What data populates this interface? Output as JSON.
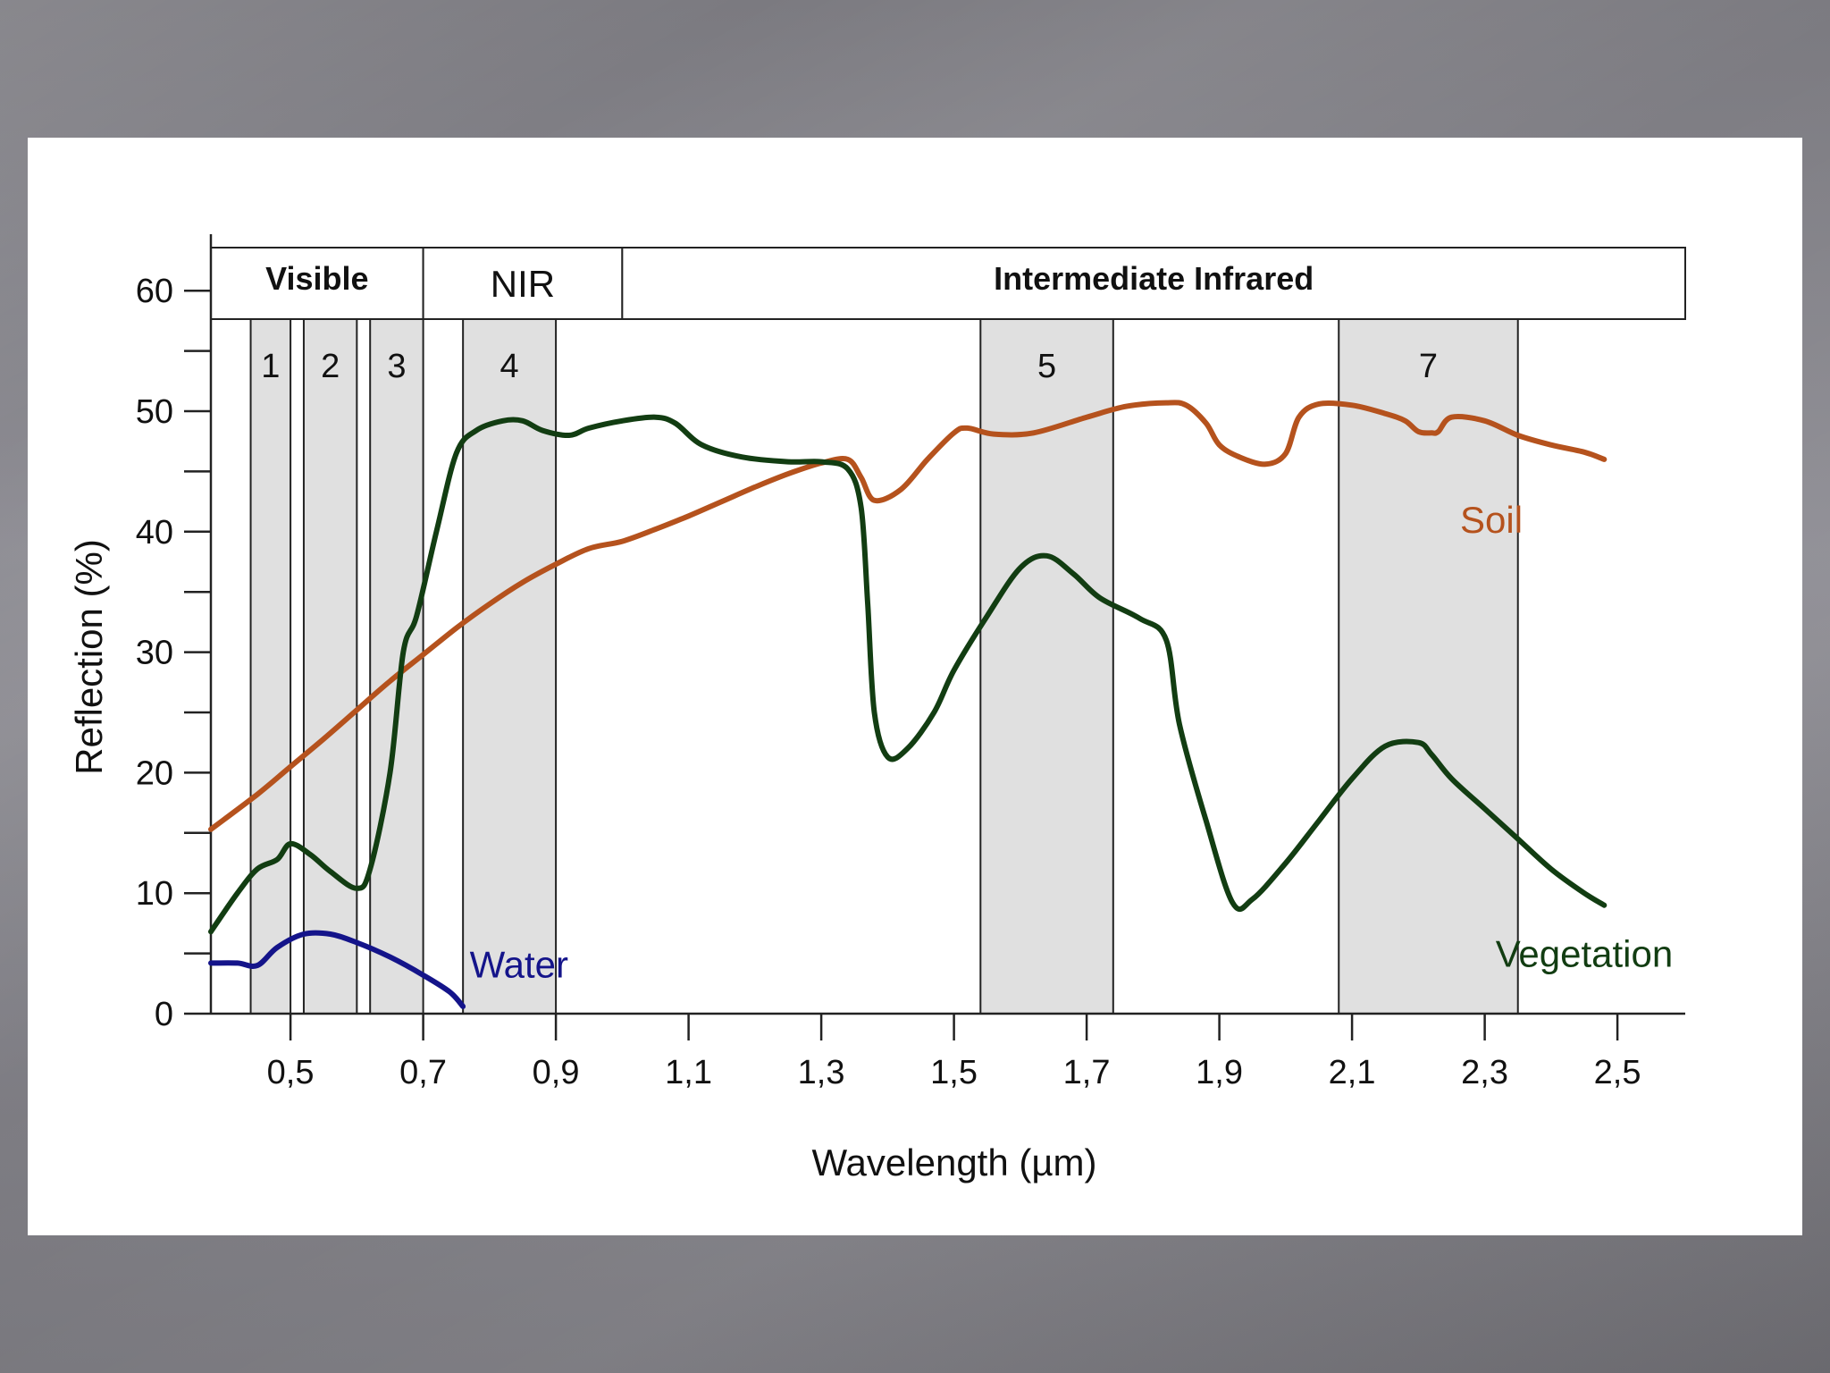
{
  "chart_data": {
    "type": "line",
    "xlabel": "Wavelength (µm)",
    "ylabel": "Reflection (%)",
    "xlim": [
      0.38,
      2.5
    ],
    "ylim": [
      0,
      60
    ],
    "x_ticks": [
      {
        "value": 0.5,
        "label": "0,5"
      },
      {
        "value": 0.7,
        "label": "0,7"
      },
      {
        "value": 0.9,
        "label": "0,9"
      },
      {
        "value": 1.1,
        "label": "1,1"
      },
      {
        "value": 1.3,
        "label": "1,3"
      },
      {
        "value": 1.5,
        "label": "1,5"
      },
      {
        "value": 1.7,
        "label": "1,7"
      },
      {
        "value": 1.9,
        "label": "1,9"
      },
      {
        "value": 2.1,
        "label": "2,1"
      },
      {
        "value": 2.3,
        "label": "2,3"
      },
      {
        "value": 2.5,
        "label": "2,5"
      }
    ],
    "y_ticks": [
      {
        "value": 0,
        "label": "0"
      },
      {
        "value": 10,
        "label": "10"
      },
      {
        "value": 20,
        "label": "20"
      },
      {
        "value": 30,
        "label": "30"
      },
      {
        "value": 40,
        "label": "40"
      },
      {
        "value": 50,
        "label": "50"
      },
      {
        "value": 60,
        "label": "60"
      }
    ],
    "regions": [
      {
        "label": "Visible",
        "from": 0.38,
        "to": 0.7,
        "bold": true
      },
      {
        "label": "NIR",
        "from": 0.7,
        "to": 1.0,
        "bold": false
      },
      {
        "label": "Intermediate Infrared",
        "from": 1.0,
        "to": 2.5,
        "bold": true
      }
    ],
    "bands": [
      {
        "label": "1",
        "from": 0.44,
        "to": 0.5
      },
      {
        "label": "2",
        "from": 0.52,
        "to": 0.6
      },
      {
        "label": "3",
        "from": 0.62,
        "to": 0.7
      },
      {
        "label": "4",
        "from": 0.76,
        "to": 0.9
      },
      {
        "label": "5",
        "from": 1.54,
        "to": 1.74
      },
      {
        "label": "7",
        "from": 2.08,
        "to": 2.35
      }
    ],
    "series": [
      {
        "name": "Soil",
        "color": "#b5521d",
        "points": [
          [
            0.38,
            15.3
          ],
          [
            0.45,
            18.2
          ],
          [
            0.5,
            20.5
          ],
          [
            0.55,
            22.8
          ],
          [
            0.6,
            25.2
          ],
          [
            0.65,
            27.6
          ],
          [
            0.7,
            29.8
          ],
          [
            0.75,
            32.0
          ],
          [
            0.8,
            34.0
          ],
          [
            0.85,
            35.8
          ],
          [
            0.9,
            37.3
          ],
          [
            0.95,
            38.6
          ],
          [
            1.0,
            39.2
          ],
          [
            1.05,
            40.2
          ],
          [
            1.1,
            41.3
          ],
          [
            1.15,
            42.5
          ],
          [
            1.2,
            43.7
          ],
          [
            1.25,
            44.8
          ],
          [
            1.3,
            45.7
          ],
          [
            1.34,
            46.0
          ],
          [
            1.36,
            44.5
          ],
          [
            1.38,
            42.6
          ],
          [
            1.42,
            43.5
          ],
          [
            1.46,
            46.0
          ],
          [
            1.5,
            48.2
          ],
          [
            1.52,
            48.6
          ],
          [
            1.56,
            48.1
          ],
          [
            1.62,
            48.2
          ],
          [
            1.7,
            49.5
          ],
          [
            1.76,
            50.4
          ],
          [
            1.82,
            50.7
          ],
          [
            1.85,
            50.5
          ],
          [
            1.88,
            49.0
          ],
          [
            1.9,
            47.2
          ],
          [
            1.93,
            46.2
          ],
          [
            1.97,
            45.6
          ],
          [
            2.0,
            46.5
          ],
          [
            2.02,
            49.5
          ],
          [
            2.05,
            50.6
          ],
          [
            2.1,
            50.5
          ],
          [
            2.15,
            49.8
          ],
          [
            2.18,
            49.2
          ],
          [
            2.2,
            48.3
          ],
          [
            2.22,
            48.2
          ],
          [
            2.23,
            48.3
          ],
          [
            2.25,
            49.5
          ],
          [
            2.3,
            49.2
          ],
          [
            2.35,
            48.0
          ],
          [
            2.4,
            47.2
          ],
          [
            2.45,
            46.6
          ],
          [
            2.48,
            46.0
          ]
        ]
      },
      {
        "name": "Vegetation",
        "color": "#123d12",
        "points": [
          [
            0.38,
            6.8
          ],
          [
            0.42,
            10.0
          ],
          [
            0.45,
            12.0
          ],
          [
            0.48,
            12.8
          ],
          [
            0.5,
            14.1
          ],
          [
            0.53,
            13.2
          ],
          [
            0.56,
            11.8
          ],
          [
            0.6,
            10.4
          ],
          [
            0.62,
            12.0
          ],
          [
            0.65,
            20.0
          ],
          [
            0.67,
            30.0
          ],
          [
            0.69,
            33.0
          ],
          [
            0.72,
            40.0
          ],
          [
            0.75,
            46.5
          ],
          [
            0.78,
            48.4
          ],
          [
            0.82,
            49.2
          ],
          [
            0.85,
            49.2
          ],
          [
            0.88,
            48.4
          ],
          [
            0.92,
            48.0
          ],
          [
            0.95,
            48.6
          ],
          [
            1.0,
            49.2
          ],
          [
            1.05,
            49.5
          ],
          [
            1.08,
            49.0
          ],
          [
            1.12,
            47.2
          ],
          [
            1.18,
            46.2
          ],
          [
            1.25,
            45.8
          ],
          [
            1.3,
            45.8
          ],
          [
            1.34,
            45.2
          ],
          [
            1.36,
            42.0
          ],
          [
            1.37,
            34.0
          ],
          [
            1.38,
            25.0
          ],
          [
            1.4,
            21.3
          ],
          [
            1.43,
            22.0
          ],
          [
            1.47,
            25.0
          ],
          [
            1.5,
            28.5
          ],
          [
            1.55,
            33.0
          ],
          [
            1.6,
            37.0
          ],
          [
            1.64,
            38.0
          ],
          [
            1.68,
            36.5
          ],
          [
            1.72,
            34.5
          ],
          [
            1.78,
            32.8
          ],
          [
            1.82,
            31.0
          ],
          [
            1.84,
            24.0
          ],
          [
            1.88,
            16.0
          ],
          [
            1.92,
            9.2
          ],
          [
            1.95,
            9.5
          ],
          [
            2.0,
            12.5
          ],
          [
            2.05,
            16.0
          ],
          [
            2.1,
            19.5
          ],
          [
            2.15,
            22.2
          ],
          [
            2.2,
            22.5
          ],
          [
            2.22,
            21.5
          ],
          [
            2.25,
            19.5
          ],
          [
            2.3,
            17.0
          ],
          [
            2.35,
            14.5
          ],
          [
            2.4,
            12.0
          ],
          [
            2.45,
            10.0
          ],
          [
            2.48,
            9.0
          ]
        ]
      },
      {
        "name": "Water",
        "color": "#14148a",
        "points": [
          [
            0.38,
            4.2
          ],
          [
            0.42,
            4.2
          ],
          [
            0.45,
            4.0
          ],
          [
            0.48,
            5.5
          ],
          [
            0.52,
            6.6
          ],
          [
            0.56,
            6.6
          ],
          [
            0.6,
            5.9
          ],
          [
            0.65,
            4.7
          ],
          [
            0.7,
            3.2
          ],
          [
            0.74,
            1.8
          ],
          [
            0.76,
            0.6
          ]
        ]
      }
    ]
  }
}
